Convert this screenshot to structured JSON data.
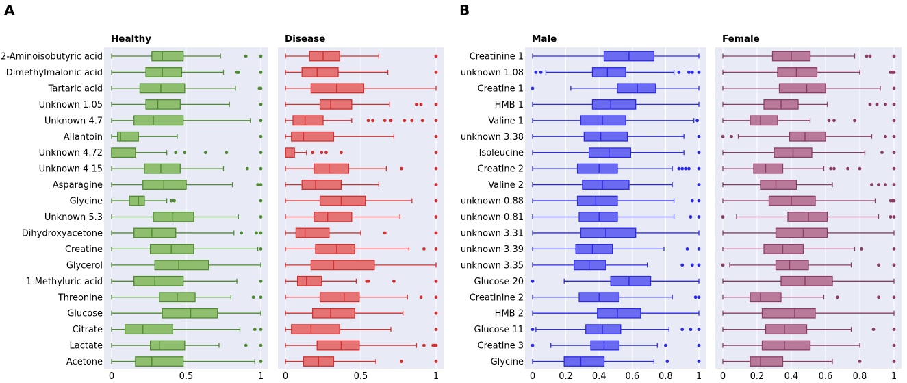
{
  "figure": {
    "panel_letters": [
      "A",
      "B"
    ],
    "colors": {
      "plot_bg": "#e8ebf5",
      "grid": "#ffffff",
      "healthy": "#4e8a2e",
      "healthy_fill": "#8fbf6e",
      "disease": "#d32f2f",
      "disease_fill": "#e57373",
      "male": "#2a2ae6",
      "male_fill": "#6b6bf2",
      "female": "#8b3c63",
      "female_fill": "#b87a98"
    }
  },
  "chart_data": [
    {
      "type": "boxplot",
      "title": "Healthy",
      "panel": "A",
      "xlim": [
        0,
        1
      ],
      "xticks": [
        0,
        0.5,
        1
      ],
      "xticklabels": [
        "0",
        "0.5",
        "1"
      ],
      "categories": [
        "2-Aminoisobutyric acid",
        "Dimethylmalonic acid",
        "Tartaric acid",
        "Unknown 1.05",
        "Unknown 4.7",
        "Allantoin",
        "Unknown 4.72",
        "Unknown 4.15",
        "Asparagine",
        "Glycine",
        "Unknown 5.3",
        "Dihydroxyacetone",
        "Creatine",
        "Glycerol",
        "1-Methyluric acid",
        "Threonine",
        "Glucose",
        "Citrate",
        "Lactate",
        "Acetone"
      ],
      "boxes": [
        {
          "wlo": 0,
          "q1": 0.27,
          "med": 0.34,
          "q3": 0.48,
          "whi": 0.73,
          "out": [
            0.9,
            1
          ]
        },
        {
          "wlo": 0,
          "q1": 0.23,
          "med": 0.34,
          "q3": 0.47,
          "whi": 0.75,
          "out": [
            0.84,
            0.85,
            1
          ]
        },
        {
          "wlo": 0,
          "q1": 0.19,
          "med": 0.33,
          "q3": 0.49,
          "whi": 0.83,
          "out": [
            0.99,
            1
          ]
        },
        {
          "wlo": 0,
          "q1": 0.23,
          "med": 0.31,
          "q3": 0.46,
          "whi": 0.79,
          "out": [
            1
          ]
        },
        {
          "wlo": 0,
          "q1": 0.15,
          "med": 0.28,
          "q3": 0.48,
          "whi": 0.93,
          "out": [
            1
          ]
        },
        {
          "wlo": 0,
          "q1": 0.04,
          "med": 0.06,
          "q3": 0.18,
          "whi": 0.44,
          "out": [
            1
          ]
        },
        {
          "wlo": 0,
          "q1": 0,
          "med": 0,
          "q3": 0.16,
          "whi": 0.37,
          "out": [
            0.43,
            0.49,
            0.63,
            0.77,
            1
          ]
        },
        {
          "wlo": 0,
          "q1": 0.22,
          "med": 0.33,
          "q3": 0.46,
          "whi": 0.75,
          "out": [
            0.91,
            1
          ]
        },
        {
          "wlo": 0,
          "q1": 0.21,
          "med": 0.35,
          "q3": 0.5,
          "whi": 0.81,
          "out": [
            0.98,
            1
          ]
        },
        {
          "wlo": 0,
          "q1": 0.12,
          "med": 0.18,
          "q3": 0.22,
          "whi": 0.37,
          "out": [
            0.4,
            0.42,
            1
          ]
        },
        {
          "wlo": 0,
          "q1": 0.28,
          "med": 0.41,
          "q3": 0.55,
          "whi": 0.85,
          "out": [
            1
          ]
        },
        {
          "wlo": 0,
          "q1": 0.15,
          "med": 0.27,
          "q3": 0.43,
          "whi": 0.82,
          "out": [
            0.87,
            0.97,
            1
          ]
        },
        {
          "wlo": 0,
          "q1": 0.26,
          "med": 0.4,
          "q3": 0.55,
          "whi": 0.98,
          "out": [
            1
          ]
        },
        {
          "wlo": 0,
          "q1": 0.29,
          "med": 0.45,
          "q3": 0.65,
          "whi": 1,
          "out": []
        },
        {
          "wlo": 0,
          "q1": 0.15,
          "med": 0.29,
          "q3": 0.48,
          "whi": 0.84,
          "out": [
            1
          ]
        },
        {
          "wlo": 0,
          "q1": 0.32,
          "med": 0.44,
          "q3": 0.56,
          "whi": 0.8,
          "out": [
            0.95,
            1
          ]
        },
        {
          "wlo": 0,
          "q1": 0.34,
          "med": 0.53,
          "q3": 0.71,
          "whi": 1,
          "out": []
        },
        {
          "wlo": 0,
          "q1": 0.09,
          "med": 0.21,
          "q3": 0.41,
          "whi": 0.86,
          "out": [
            0.96,
            1
          ]
        },
        {
          "wlo": 0,
          "q1": 0.26,
          "med": 0.32,
          "q3": 0.49,
          "whi": 0.72,
          "out": [
            0.9,
            1
          ]
        },
        {
          "wlo": 0,
          "q1": 0.16,
          "med": 0.27,
          "q3": 0.48,
          "whi": 0.96,
          "out": [
            1
          ]
        }
      ]
    },
    {
      "type": "boxplot",
      "title": "Disease",
      "panel": "A",
      "xlim": [
        0,
        1
      ],
      "xticks": [
        0,
        0.5,
        1
      ],
      "xticklabels": [
        "0",
        "0.5",
        "1"
      ],
      "categories": [
        "2-Aminoisobutyric acid",
        "Dimethylmalonic acid",
        "Tartaric acid",
        "Unknown 1.05",
        "Unknown 4.7",
        "Allantoin",
        "Unknown 4.72",
        "Unknown 4.15",
        "Asparagine",
        "Glycine",
        "Unknown 5.3",
        "Dihydroxyacetone",
        "Creatine",
        "Glycerol",
        "1-Methyluric acid",
        "Threonine",
        "Glucose",
        "Citrate",
        "Lactate",
        "Acetone"
      ],
      "boxes": [
        {
          "wlo": 0,
          "q1": 0.16,
          "med": 0.25,
          "q3": 0.36,
          "whi": 0.62,
          "out": [
            1
          ]
        },
        {
          "wlo": 0,
          "q1": 0.11,
          "med": 0.21,
          "q3": 0.35,
          "whi": 0.68,
          "out": [
            1
          ]
        },
        {
          "wlo": 0,
          "q1": 0.17,
          "med": 0.34,
          "q3": 0.52,
          "whi": 1,
          "out": []
        },
        {
          "wlo": 0,
          "q1": 0.23,
          "med": 0.3,
          "q3": 0.44,
          "whi": 0.69,
          "out": [
            0.87,
            0.9,
            1
          ]
        },
        {
          "wlo": 0,
          "q1": 0.05,
          "med": 0.13,
          "q3": 0.25,
          "whi": 0.44,
          "out": [
            0.55,
            0.58,
            0.66,
            0.7,
            0.79,
            0.84,
            0.91,
            1
          ]
        },
        {
          "wlo": 0,
          "q1": 0.04,
          "med": 0.12,
          "q3": 0.32,
          "whi": 0.72,
          "out": [
            1
          ]
        },
        {
          "wlo": 0,
          "q1": 0,
          "med": 0,
          "q3": 0.06,
          "whi": 0.14,
          "out": [
            0.18,
            0.24,
            0.27,
            0.37,
            1
          ]
        },
        {
          "wlo": 0,
          "q1": 0.19,
          "med": 0.29,
          "q3": 0.42,
          "whi": 0.67,
          "out": [
            0.77,
            1
          ]
        },
        {
          "wlo": 0,
          "q1": 0.11,
          "med": 0.2,
          "q3": 0.37,
          "whi": 0.62,
          "out": [
            1
          ]
        },
        {
          "wlo": 0,
          "q1": 0.23,
          "med": 0.37,
          "q3": 0.53,
          "whi": 0.84,
          "out": [
            1
          ]
        },
        {
          "wlo": 0,
          "q1": 0.19,
          "med": 0.28,
          "q3": 0.44,
          "whi": 0.76,
          "out": [
            1
          ]
        },
        {
          "wlo": 0,
          "q1": 0.07,
          "med": 0.13,
          "q3": 0.29,
          "whi": 0.5,
          "out": [
            0.66,
            1
          ]
        },
        {
          "wlo": 0,
          "q1": 0.2,
          "med": 0.34,
          "q3": 0.46,
          "whi": 0.82,
          "out": [
            0.92,
            1
          ]
        },
        {
          "wlo": 0,
          "q1": 0.17,
          "med": 0.32,
          "q3": 0.59,
          "whi": 1,
          "out": []
        },
        {
          "wlo": 0,
          "q1": 0.08,
          "med": 0.14,
          "q3": 0.24,
          "whi": 0.47,
          "out": [
            0.54,
            0.55,
            0.72,
            1
          ]
        },
        {
          "wlo": 0,
          "q1": 0.23,
          "med": 0.39,
          "q3": 0.49,
          "whi": 0.81,
          "out": [
            0.9,
            1
          ]
        },
        {
          "wlo": 0,
          "q1": 0.18,
          "med": 0.3,
          "q3": 0.46,
          "whi": 0.78,
          "out": [
            1
          ]
        },
        {
          "wlo": 0,
          "q1": 0.04,
          "med": 0.17,
          "q3": 0.36,
          "whi": 0.7,
          "out": [
            1
          ]
        },
        {
          "wlo": 0,
          "q1": 0.21,
          "med": 0.37,
          "q3": 0.49,
          "whi": 0.87,
          "out": [
            0.92,
            0.98,
            0.99,
            1
          ]
        },
        {
          "wlo": 0,
          "q1": 0.12,
          "med": 0.22,
          "q3": 0.32,
          "whi": 0.6,
          "out": [
            0.77,
            1
          ]
        }
      ]
    },
    {
      "type": "boxplot",
      "title": "Male",
      "panel": "B",
      "xlim": [
        0,
        1
      ],
      "xticks": [
        0,
        0.2,
        0.4,
        0.6,
        0.8,
        1
      ],
      "xticklabels": [
        "0",
        "0.2",
        "0.4",
        "0.6",
        "0.8",
        "1"
      ],
      "categories": [
        "Creatinine 1",
        "unknown 1.08",
        "Creatine 1",
        "HMB 1",
        "Valine 1",
        "unknown 3.38",
        "Isoleucine",
        "Creatine 2",
        "Valine 2",
        "unknown 0.88",
        "unknown 0.81",
        "unknown 3.31",
        "unknown 3.39",
        "unknown 3.35",
        "Glucose 20",
        "Creatinine 2",
        "HMB 2",
        "Glucose 11",
        "Creatine 3",
        "Glycine"
      ],
      "boxes": [
        {
          "wlo": 0,
          "q1": 0.43,
          "med": 0.58,
          "q3": 0.73,
          "whi": 1,
          "out": []
        },
        {
          "wlo": 0.08,
          "q1": 0.36,
          "med": 0.45,
          "q3": 0.56,
          "whi": 0.85,
          "out": [
            0.02,
            0.05,
            0.88,
            0.94,
            0.96,
            1
          ]
        },
        {
          "wlo": 0.23,
          "q1": 0.51,
          "med": 0.63,
          "q3": 0.74,
          "whi": 1,
          "out": [
            0
          ]
        },
        {
          "wlo": 0,
          "q1": 0.36,
          "med": 0.47,
          "q3": 0.62,
          "whi": 1,
          "out": []
        },
        {
          "wlo": 0,
          "q1": 0.29,
          "med": 0.42,
          "q3": 0.56,
          "whi": 0.97,
          "out": [
            0.99
          ]
        },
        {
          "wlo": 0,
          "q1": 0.31,
          "med": 0.41,
          "q3": 0.57,
          "whi": 0.91,
          "out": [
            1
          ]
        },
        {
          "wlo": 0,
          "q1": 0.34,
          "med": 0.46,
          "q3": 0.59,
          "whi": 0.91,
          "out": [
            1
          ]
        },
        {
          "wlo": 0,
          "q1": 0.27,
          "med": 0.4,
          "q3": 0.51,
          "whi": 0.84,
          "out": [
            0.88,
            0.9,
            0.92,
            0.94,
            1
          ]
        },
        {
          "wlo": 0,
          "q1": 0.3,
          "med": 0.42,
          "q3": 0.58,
          "whi": 0.84,
          "out": [
            1
          ]
        },
        {
          "wlo": 0,
          "q1": 0.27,
          "med": 0.38,
          "q3": 0.51,
          "whi": 0.85,
          "out": [
            0.96,
            1
          ]
        },
        {
          "wlo": 0,
          "q1": 0.28,
          "med": 0.4,
          "q3": 0.51,
          "whi": 0.85,
          "out": [
            0.95,
            1
          ]
        },
        {
          "wlo": 0,
          "q1": 0.29,
          "med": 0.44,
          "q3": 0.62,
          "whi": 1,
          "out": []
        },
        {
          "wlo": 0,
          "q1": 0.26,
          "med": 0.36,
          "q3": 0.48,
          "whi": 0.79,
          "out": [
            0.93,
            1
          ]
        },
        {
          "wlo": 0,
          "q1": 0.25,
          "med": 0.34,
          "q3": 0.44,
          "whi": 0.69,
          "out": [
            0.9,
            0.96,
            1
          ]
        },
        {
          "wlo": 0.19,
          "q1": 0.47,
          "med": 0.58,
          "q3": 0.71,
          "whi": 1,
          "out": [
            0
          ]
        },
        {
          "wlo": 0,
          "q1": 0.28,
          "med": 0.4,
          "q3": 0.52,
          "whi": 0.84,
          "out": [
            0.98,
            1
          ]
        },
        {
          "wlo": 0,
          "q1": 0.39,
          "med": 0.51,
          "q3": 0.65,
          "whi": 1,
          "out": []
        },
        {
          "wlo": 0.02,
          "q1": 0.32,
          "med": 0.42,
          "q3": 0.53,
          "whi": 0.82,
          "out": [
            0,
            0.9,
            0.95,
            1
          ]
        },
        {
          "wlo": 0.11,
          "q1": 0.35,
          "med": 0.43,
          "q3": 0.52,
          "whi": 0.75,
          "out": [
            0,
            0.8,
            1
          ]
        },
        {
          "wlo": 0,
          "q1": 0.19,
          "med": 0.29,
          "q3": 0.43,
          "whi": 0.73,
          "out": [
            0.81,
            1
          ]
        }
      ]
    },
    {
      "type": "boxplot",
      "title": "Female",
      "panel": "B",
      "xlim": [
        0,
        1
      ],
      "xticks": [
        0,
        0.2,
        0.4,
        0.6,
        0.8,
        1
      ],
      "xticklabels": [
        "0",
        "0.2",
        "0.4",
        "0.6",
        "0.8",
        "1"
      ],
      "categories": [
        "Creatinine 1",
        "unknown 1.08",
        "Creatine 1",
        "HMB 1",
        "Valine 1",
        "unknown 3.38",
        "Isoleucine",
        "Creatine 2",
        "Valine 2",
        "unknown 0.88",
        "unknown 0.81",
        "unknown 3.31",
        "unknown 3.39",
        "unknown 3.35",
        "Glucose 20",
        "Creatinine 2",
        "HMB 2",
        "Glucose 11",
        "Creatine 3",
        "Glycine"
      ],
      "boxes": [
        {
          "wlo": 0,
          "q1": 0.29,
          "med": 0.4,
          "q3": 0.51,
          "whi": 0.77,
          "out": [
            0.84,
            0.86,
            1
          ]
        },
        {
          "wlo": 0,
          "q1": 0.32,
          "med": 0.43,
          "q3": 0.55,
          "whi": 0.8,
          "out": [
            0.98,
            0.99,
            1
          ]
        },
        {
          "wlo": 0,
          "q1": 0.33,
          "med": 0.49,
          "q3": 0.6,
          "whi": 0.92,
          "out": [
            1
          ]
        },
        {
          "wlo": 0,
          "q1": 0.24,
          "med": 0.34,
          "q3": 0.44,
          "whi": 0.61,
          "out": [
            0.86,
            0.9,
            0.95,
            1
          ]
        },
        {
          "wlo": 0,
          "q1": 0.16,
          "med": 0.22,
          "q3": 0.32,
          "whi": 0.51,
          "out": [
            0.62,
            0.65,
            0.77,
            1
          ]
        },
        {
          "wlo": 0.09,
          "q1": 0.39,
          "med": 0.48,
          "q3": 0.6,
          "whi": 0.87,
          "out": [
            0,
            0.05,
            0.95,
            1
          ]
        },
        {
          "wlo": 0,
          "q1": 0.3,
          "med": 0.41,
          "q3": 0.52,
          "whi": 0.83,
          "out": [
            0.93,
            1
          ]
        },
        {
          "wlo": 0,
          "q1": 0.18,
          "med": 0.25,
          "q3": 0.35,
          "whi": 0.59,
          "out": [
            0.63,
            0.65,
            0.73,
            0.8,
            1
          ]
        },
        {
          "wlo": 0,
          "q1": 0.22,
          "med": 0.31,
          "q3": 0.43,
          "whi": 0.64,
          "out": [
            0.87,
            0.91,
            0.95,
            1
          ]
        },
        {
          "wlo": 0,
          "q1": 0.27,
          "med": 0.4,
          "q3": 0.54,
          "whi": 0.89,
          "out": [
            0.98,
            0.99,
            1
          ]
        },
        {
          "wlo": 0.08,
          "q1": 0.38,
          "med": 0.5,
          "q3": 0.61,
          "whi": 0.91,
          "out": [
            0,
            0.98,
            1
          ]
        },
        {
          "wlo": 0,
          "q1": 0.31,
          "med": 0.47,
          "q3": 0.61,
          "whi": 1,
          "out": []
        },
        {
          "wlo": 0,
          "q1": 0.24,
          "med": 0.35,
          "q3": 0.47,
          "whi": 0.77,
          "out": [
            0.81,
            1
          ]
        },
        {
          "wlo": 0.04,
          "q1": 0.31,
          "med": 0.39,
          "q3": 0.5,
          "whi": 0.75,
          "out": [
            0,
            0.91,
            1
          ]
        },
        {
          "wlo": 0,
          "q1": 0.34,
          "med": 0.48,
          "q3": 0.64,
          "whi": 1,
          "out": []
        },
        {
          "wlo": 0,
          "q1": 0.16,
          "med": 0.22,
          "q3": 0.34,
          "whi": 0.59,
          "out": [
            0.67,
            0.91,
            1
          ]
        },
        {
          "wlo": 0,
          "q1": 0.23,
          "med": 0.42,
          "q3": 0.54,
          "whi": 1,
          "out": []
        },
        {
          "wlo": 0,
          "q1": 0.25,
          "med": 0.36,
          "q3": 0.49,
          "whi": 0.75,
          "out": [
            0.88,
            1
          ]
        },
        {
          "wlo": 0,
          "q1": 0.23,
          "med": 0.36,
          "q3": 0.51,
          "whi": 0.8,
          "out": [
            1
          ]
        },
        {
          "wlo": 0,
          "q1": 0.16,
          "med": 0.22,
          "q3": 0.35,
          "whi": 0.64,
          "out": [
            0.8,
            1
          ]
        }
      ]
    }
  ]
}
